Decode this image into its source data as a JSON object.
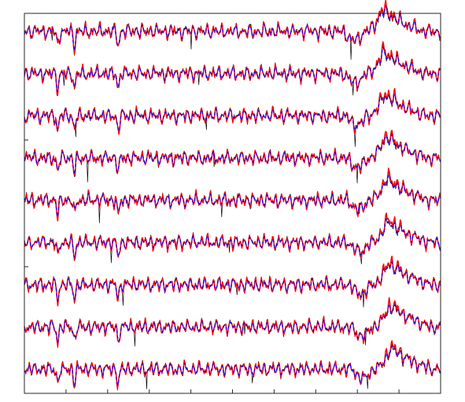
{
  "chart_data": {
    "type": "line",
    "title": "",
    "xlabel": "",
    "ylabel": "",
    "grid": false,
    "legend": "none",
    "channels": 9,
    "samples": 600,
    "xlim": [
      0,
      600
    ],
    "series": [
      {
        "style": "solid-thin",
        "color": "#000000"
      },
      {
        "style": "dashed",
        "color": "#0000ff"
      },
      {
        "style": "solid-thick",
        "color": "#ff0000"
      }
    ],
    "tick_count": 10
  },
  "colors": {
    "measured": "#000000",
    "estimate_dashed": "#0000ff",
    "estimate_solid": "#ff0000",
    "axes": "#262626",
    "background": "#ffffff"
  }
}
